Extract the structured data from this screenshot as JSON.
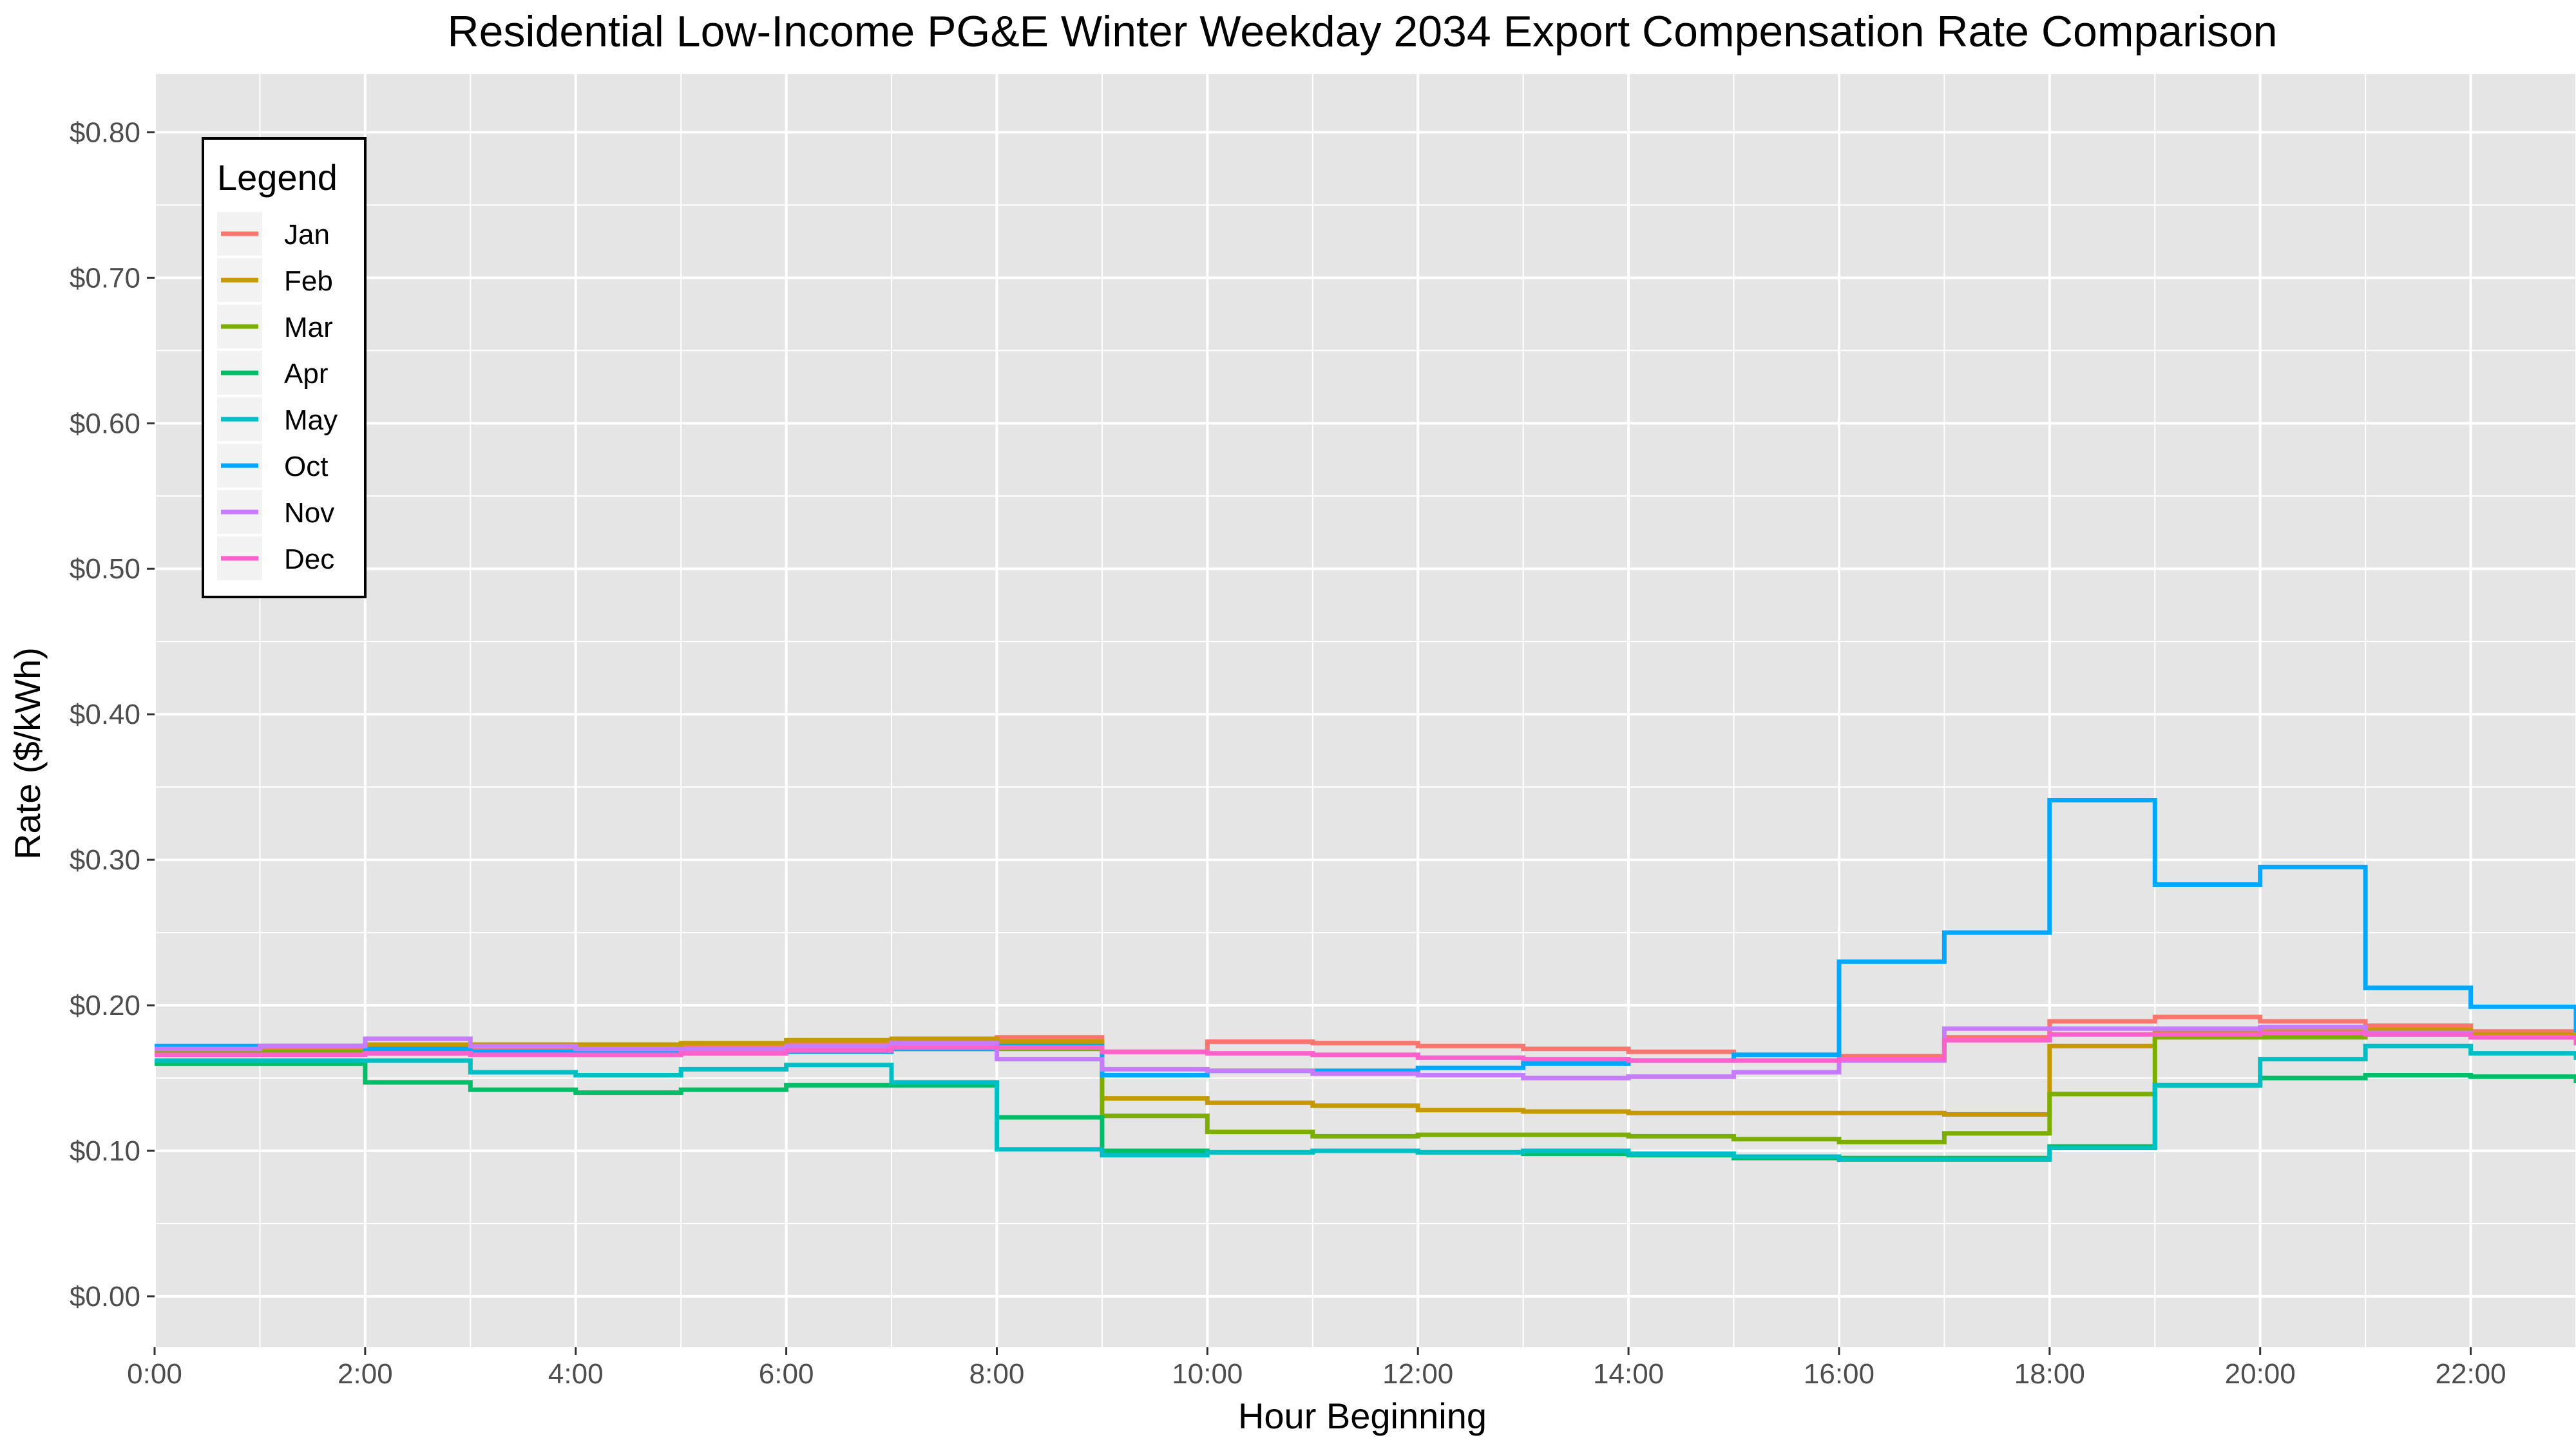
{
  "chart_data": {
    "type": "line",
    "step": true,
    "title": "Residential Low-Income PG&E Winter Weekday 2034 Export Compensation Rate Comparison",
    "xlabel": "Hour Beginning",
    "ylabel": "Rate ($/kWh)",
    "xlim": [
      0,
      23
    ],
    "ylim": [
      -0.035,
      0.84
    ],
    "y_ticks": [
      {
        "value": 0.0,
        "label": "$0.00"
      },
      {
        "value": 0.1,
        "label": "$0.10"
      },
      {
        "value": 0.2,
        "label": "$0.20"
      },
      {
        "value": 0.3,
        "label": "$0.30"
      },
      {
        "value": 0.4,
        "label": "$0.40"
      },
      {
        "value": 0.5,
        "label": "$0.50"
      },
      {
        "value": 0.6,
        "label": "$0.60"
      },
      {
        "value": 0.7,
        "label": "$0.70"
      },
      {
        "value": 0.8,
        "label": "$0.80"
      }
    ],
    "x_ticks": [
      {
        "value": 0,
        "label": "0:00"
      },
      {
        "value": 2,
        "label": "2:00"
      },
      {
        "value": 4,
        "label": "4:00"
      },
      {
        "value": 6,
        "label": "6:00"
      },
      {
        "value": 8,
        "label": "8:00"
      },
      {
        "value": 10,
        "label": "10:00"
      },
      {
        "value": 12,
        "label": "12:00"
      },
      {
        "value": 14,
        "label": "14:00"
      },
      {
        "value": 16,
        "label": "16:00"
      },
      {
        "value": 18,
        "label": "18:00"
      },
      {
        "value": 20,
        "label": "20:00"
      },
      {
        "value": 22,
        "label": "22:00"
      }
    ],
    "grid": true,
    "background_color": "#e5e5e5",
    "grid_color": "#ffffff",
    "legend": {
      "title": "Legend",
      "position": "top-left"
    },
    "hours": [
      0,
      1,
      2,
      3,
      4,
      5,
      6,
      7,
      8,
      9,
      10,
      11,
      12,
      13,
      14,
      15,
      16,
      17,
      18,
      19,
      20,
      21,
      22,
      23
    ],
    "series": [
      {
        "name": "Jan",
        "color": "#f8766d",
        "values": [
          0.168,
          0.17,
          0.172,
          0.171,
          0.171,
          0.173,
          0.175,
          0.177,
          0.178,
          0.168,
          0.175,
          0.174,
          0.172,
          0.17,
          0.168,
          0.166,
          0.165,
          0.178,
          0.189,
          0.192,
          0.189,
          0.186,
          0.182,
          0.178
        ]
      },
      {
        "name": "Feb",
        "color": "#c49a00",
        "values": [
          0.17,
          0.172,
          0.173,
          0.173,
          0.173,
          0.174,
          0.176,
          0.177,
          0.175,
          0.136,
          0.133,
          0.131,
          0.128,
          0.127,
          0.126,
          0.126,
          0.126,
          0.125,
          0.172,
          0.182,
          0.182,
          0.183,
          0.18,
          0.176
        ]
      },
      {
        "name": "Mar",
        "color": "#7cae00",
        "values": [
          0.168,
          0.168,
          0.167,
          0.167,
          0.167,
          0.168,
          0.17,
          0.17,
          0.17,
          0.124,
          0.113,
          0.11,
          0.111,
          0.111,
          0.11,
          0.108,
          0.106,
          0.112,
          0.139,
          0.178,
          0.178,
          0.18,
          0.178,
          0.175
        ]
      },
      {
        "name": "Apr",
        "color": "#00be67",
        "values": [
          0.16,
          0.16,
          0.147,
          0.142,
          0.14,
          0.142,
          0.145,
          0.145,
          0.123,
          0.1,
          0.099,
          0.1,
          0.099,
          0.098,
          0.097,
          0.095,
          0.095,
          0.095,
          0.103,
          0.145,
          0.15,
          0.152,
          0.151,
          0.148
        ]
      },
      {
        "name": "May",
        "color": "#00bfc4",
        "values": [
          0.162,
          0.162,
          0.162,
          0.154,
          0.152,
          0.156,
          0.159,
          0.147,
          0.101,
          0.097,
          0.099,
          0.1,
          0.099,
          0.1,
          0.098,
          0.096,
          0.094,
          0.094,
          0.102,
          0.145,
          0.163,
          0.172,
          0.167,
          0.164
        ]
      },
      {
        "name": "Oct",
        "color": "#00a9ff",
        "values": [
          0.172,
          0.172,
          0.17,
          0.168,
          0.167,
          0.167,
          0.168,
          0.17,
          0.172,
          0.152,
          0.155,
          0.155,
          0.157,
          0.16,
          0.162,
          0.166,
          0.23,
          0.25,
          0.341,
          0.283,
          0.295,
          0.212,
          0.199,
          0.183
        ]
      },
      {
        "name": "Nov",
        "color": "#c77cff",
        "values": [
          0.17,
          0.172,
          0.177,
          0.172,
          0.17,
          0.17,
          0.172,
          0.174,
          0.163,
          0.156,
          0.155,
          0.153,
          0.152,
          0.15,
          0.151,
          0.154,
          0.162,
          0.184,
          0.184,
          0.184,
          0.185,
          0.181,
          0.178,
          0.176
        ]
      },
      {
        "name": "Dec",
        "color": "#ff61cc",
        "values": [
          0.166,
          0.166,
          0.167,
          0.166,
          0.166,
          0.167,
          0.169,
          0.171,
          0.171,
          0.168,
          0.167,
          0.166,
          0.164,
          0.163,
          0.162,
          0.162,
          0.163,
          0.176,
          0.18,
          0.18,
          0.181,
          0.18,
          0.178,
          0.174
        ]
      }
    ]
  }
}
